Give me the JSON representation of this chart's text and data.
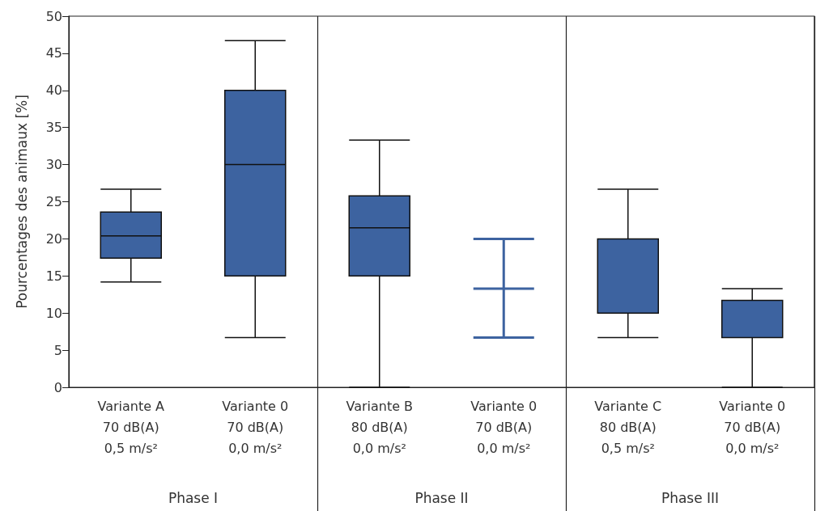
{
  "chart_data": {
    "type": "box",
    "ylabel": "Pourcentages des animaux [%]",
    "categories": [
      "Variante A\n70 dB(A)\n0,5 m/s²",
      "Variante 0\n70 dB(A)\n0,0 m/s²",
      "Variante B\n80 dB(A)\n0,0 m/s²",
      "Variante 0\n70 dB(A)\n0,0 m/s²",
      "Variante C\n80 dB(A)\n0,5 m/s²",
      "Variante 0\n70 dB(A)\n0,0 m/s²"
    ],
    "boxes": [
      {
        "low": 14.2,
        "q1": 17.4,
        "median": 20.4,
        "q3": 23.6,
        "high": 26.7
      },
      {
        "low": 6.7,
        "q1": 15,
        "median": 30,
        "q3": 40,
        "high": 46.7
      },
      {
        "low": 0,
        "q1": 15,
        "median": 21.5,
        "q3": 25.8,
        "high": 33.3
      },
      {
        "low": 6.7,
        "q1": 13.3,
        "median": 13.3,
        "q3": 13.3,
        "high": 20
      },
      {
        "low": 6.7,
        "q1": 10,
        "median": 20,
        "q3": 20,
        "high": 26.7
      },
      {
        "low": 0,
        "q1": 6.7,
        "median": 6.7,
        "q3": 11.7,
        "high": 13.3
      }
    ],
    "color": "#3d63a0",
    "annotations": [
      "Phase I",
      "Phase II",
      "Phase III"
    ],
    "ylim": [
      0,
      50
    ],
    "yticks": [
      0,
      5,
      10,
      15,
      20,
      25,
      30,
      35,
      40,
      45,
      50
    ],
    "grid": false
  }
}
